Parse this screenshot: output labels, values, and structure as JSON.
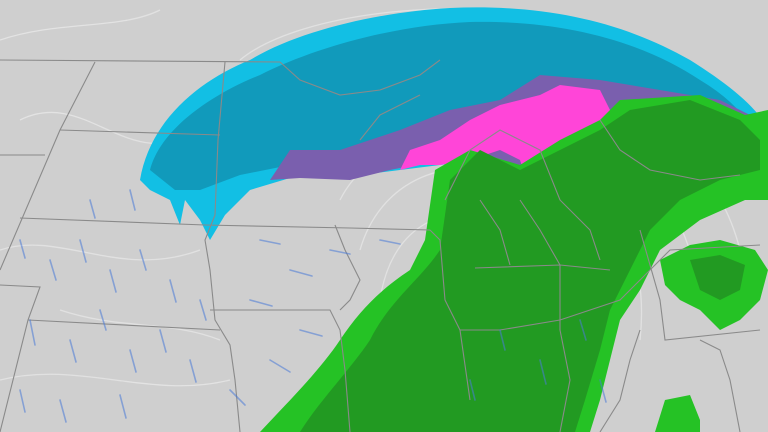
{
  "map": {
    "colors": {
      "land": "#cfcfcf",
      "borders": "#8a8a8a",
      "isobars": "#e6e6e6",
      "snow_light": "#12bfe4",
      "snow_heavy": "#119abb",
      "mix": "#7a5fae",
      "ice": "#ff45d8",
      "rain_light": "#25c225",
      "rain_heavy": "#229a22",
      "wind_streaks": "#4a7ad8"
    },
    "layers": [
      "land",
      "state-borders",
      "isobars",
      "snow",
      "mix",
      "ice",
      "rain",
      "wind-streaks"
    ]
  }
}
